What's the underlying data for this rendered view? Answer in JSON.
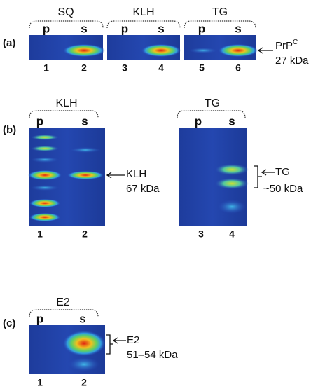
{
  "a": {
    "label": "(a)",
    "groups": [
      {
        "title": "SQ",
        "lanes": [
          "p",
          "s"
        ],
        "numbers": [
          "1",
          "2"
        ]
      },
      {
        "title": "KLH",
        "lanes": [
          "p",
          "s"
        ],
        "numbers": [
          "3",
          "4"
        ]
      },
      {
        "title": "TG",
        "lanes": [
          "p",
          "s"
        ],
        "numbers": [
          "5",
          "6"
        ]
      }
    ],
    "marker": {
      "name": "PrP",
      "sup": "C",
      "size": "27 kDa"
    }
  },
  "b": {
    "label": "(b)",
    "groups": [
      {
        "title": "KLH",
        "lanes": [
          "p",
          "s"
        ],
        "numbers": [
          "1",
          "2"
        ],
        "marker": {
          "name": "KLH",
          "size": "67 kDa"
        }
      },
      {
        "title": "TG",
        "lanes": [
          "p",
          "s"
        ],
        "numbers": [
          "3",
          "4"
        ],
        "marker": {
          "name": "TG",
          "size": "~50 kDa"
        }
      }
    ]
  },
  "c": {
    "label": "(c)",
    "groups": [
      {
        "title": "E2",
        "lanes": [
          "p",
          "s"
        ],
        "numbers": [
          "1",
          "2"
        ],
        "marker": {
          "name": "E2",
          "size": "51–54 kDa"
        }
      }
    ]
  }
}
